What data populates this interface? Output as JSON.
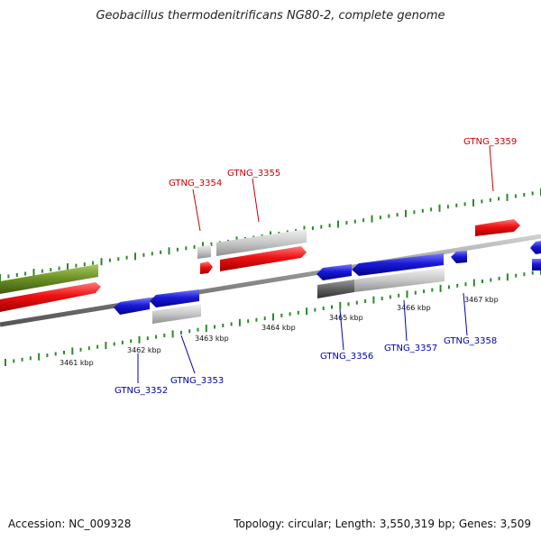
{
  "title": "Geobacillus thermodenitrificans NG80-2, complete genome",
  "footer": {
    "accession": "Accession: NC_009328",
    "stats": "Topology: circular; Length: 3,550,319 bp; Genes: 3,509"
  },
  "colors": {
    "forward_gene": "#ee1111",
    "reverse_gene": "#1a1ad8",
    "pseudo_gene": "#c8c8c8",
    "rna_gene": "#6b8e23",
    "dark_feature": "#606060",
    "backbone": "#8a8a8a",
    "tick": "#2a8a2a",
    "forward_label": "#cc0000",
    "reverse_label": "#0000b0"
  },
  "kbp_labels": [
    "3461 kbp",
    "3462 kbp",
    "3463 kbp",
    "3464 kbp",
    "3465 kbp",
    "3466 kbp",
    "3467 kbp"
  ],
  "gene_labels": {
    "forward": [
      "GTNG_3354",
      "GTNG_3355",
      "GTNG_3359"
    ],
    "reverse": [
      "GTNG_3352",
      "GTNG_3353",
      "GTNG_3356",
      "GTNG_3357",
      "GTNG_3358"
    ]
  }
}
